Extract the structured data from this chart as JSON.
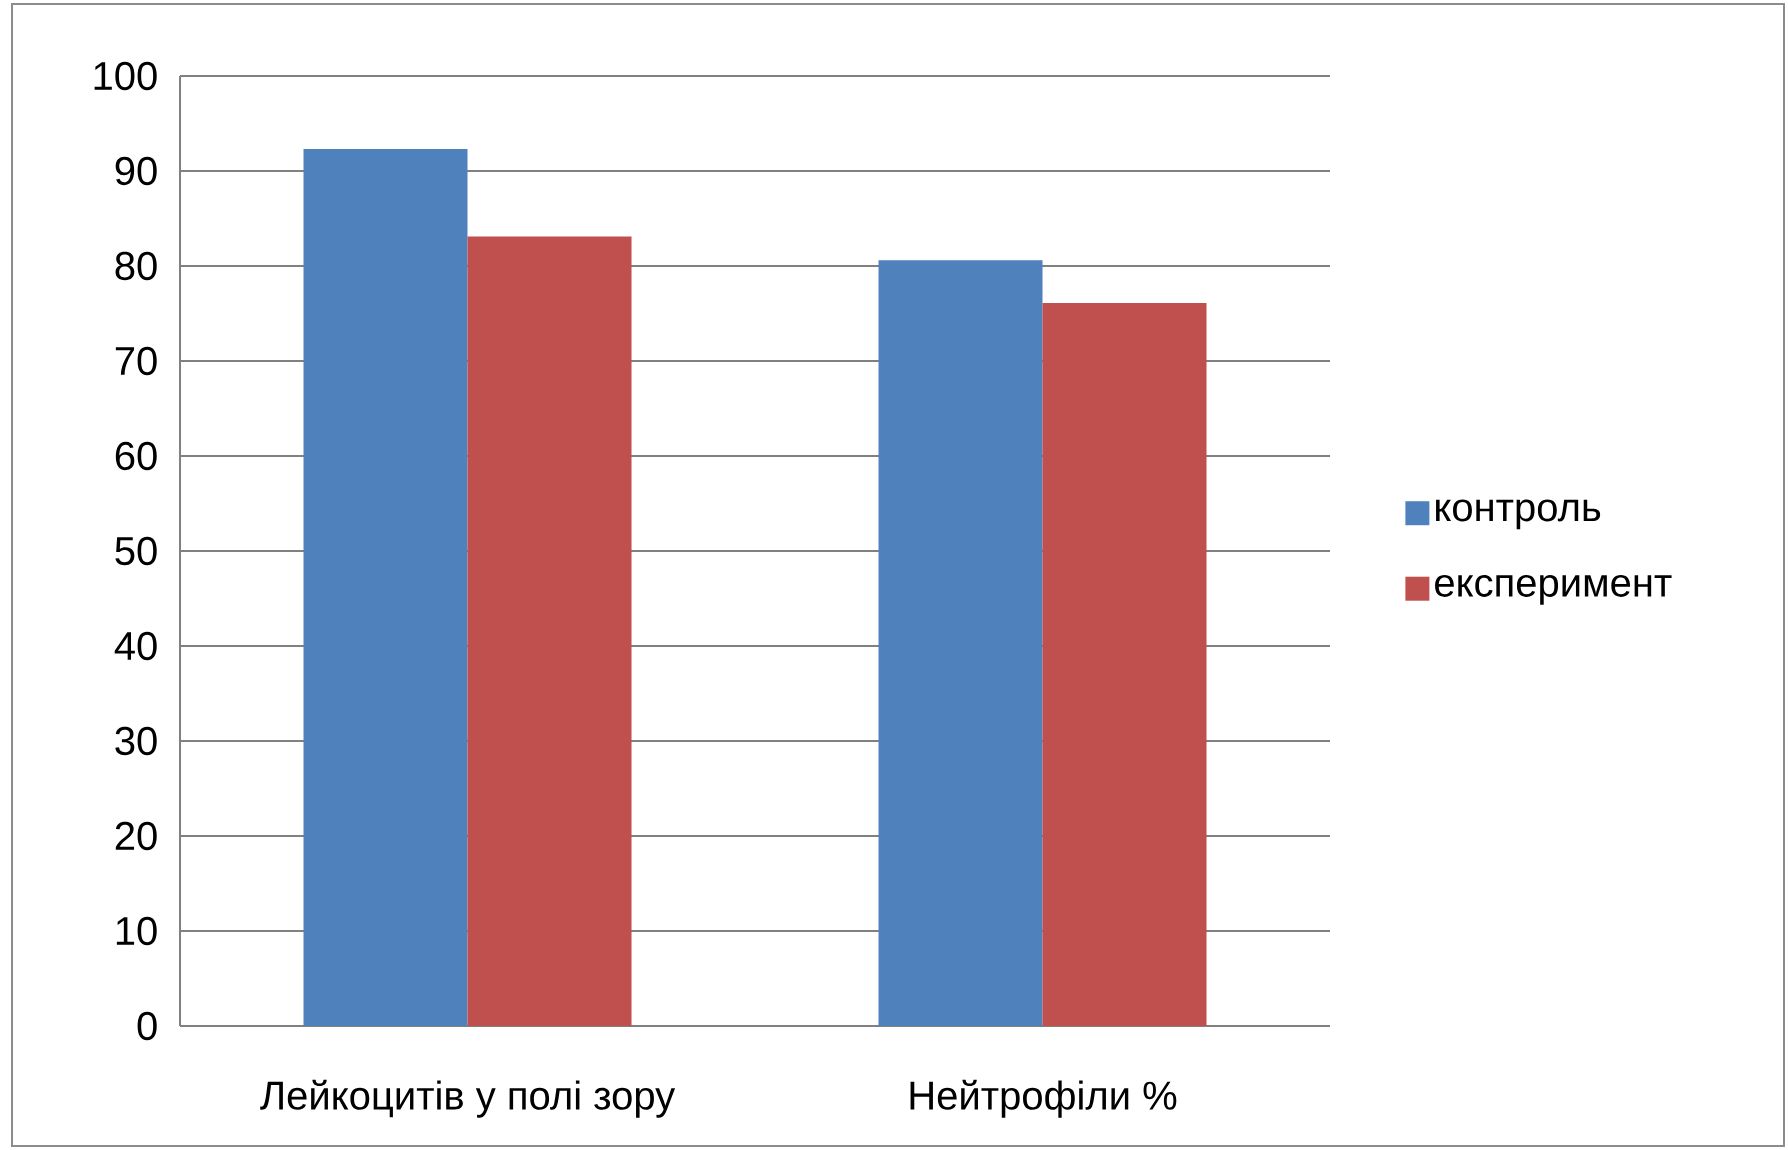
{
  "chart_data": {
    "type": "bar",
    "categories": [
      "Лейкоцитів у полі зору",
      "Нейтрофіли %"
    ],
    "series": [
      {
        "name": "контроль",
        "color": "#4f81bd",
        "values": [
          92.3,
          80.6
        ]
      },
      {
        "name": "експеримент",
        "color": "#c0504d",
        "values": [
          83.1,
          76.1
        ]
      }
    ],
    "ylim": [
      0,
      100
    ],
    "yticks": [
      0,
      10,
      20,
      30,
      40,
      50,
      60,
      70,
      80,
      90,
      100
    ],
    "grid": "y",
    "legend": "right"
  }
}
